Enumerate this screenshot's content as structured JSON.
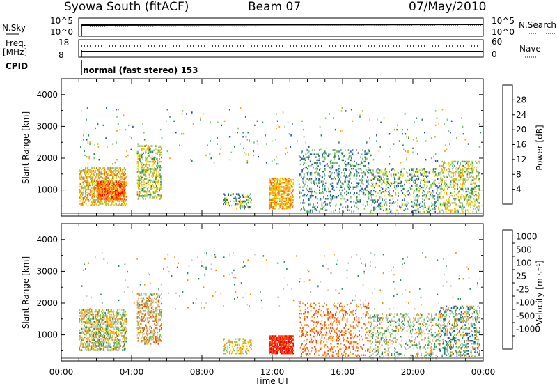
{
  "header": {
    "title": "Syowa South (fitACF)",
    "beam": "Beam 07",
    "date": "07/May/2010"
  },
  "top_panel_labels": {
    "nsky": "N.Sky",
    "nsky_hi": "10^5",
    "nsky_lo": "10^0",
    "nsearch": "N.Search",
    "nsearch_hi": "10^5",
    "nsearch_lo": "10^0",
    "freq_line1": "Freq.",
    "freq_line2": "[MHz]",
    "freq_hi": "18",
    "freq_lo": "8",
    "nave": "Nave",
    "nave_hi": "60",
    "nave_lo": "0",
    "cpid": "CPID",
    "cpid_value": "normal (fast stereo) 153"
  },
  "colors": {
    "power": [
      "#0000ff",
      "#1f4fbf",
      "#2e8b57",
      "#7cc36b",
      "#e6d800",
      "#ffa500",
      "#ff6600",
      "#ff0000"
    ],
    "velocity": [
      "#ff0000",
      "#ff4500",
      "#ff8c00",
      "#ffc200",
      "#c8c8c8",
      "#6dc45c",
      "#2e8b57",
      "#1a4fbf",
      "#0000ff"
    ],
    "ground_scatter": "#808080"
  },
  "chart_data": [
    {
      "type": "heatmap",
      "name": "power",
      "xlabel": "",
      "ylabel": "Slant Range [km]",
      "xlim": [
        0,
        24
      ],
      "ylim": [
        180,
        4500
      ],
      "yticks": [
        1000,
        2000,
        3000,
        4000
      ],
      "colorbar": {
        "label": "Power [dB]",
        "ticks": [
          "4",
          "8",
          "12",
          "16",
          "20",
          "24",
          "28"
        ],
        "range": [
          0,
          30
        ]
      },
      "scatter_regions": [
        {
          "t0": 1.0,
          "t1": 3.7,
          "r0": 500,
          "r1": 1700,
          "density": 0.35,
          "values": [
            12,
            16,
            20,
            24
          ]
        },
        {
          "t0": 2.0,
          "t1": 3.6,
          "r0": 700,
          "r1": 1300,
          "density": 0.5,
          "values": [
            20,
            24,
            28
          ]
        },
        {
          "t0": 4.3,
          "t1": 5.7,
          "r0": 700,
          "r1": 2400,
          "density": 0.25,
          "values": [
            8,
            12,
            16,
            20
          ]
        },
        {
          "t0": 9.2,
          "t1": 10.8,
          "r0": 400,
          "r1": 900,
          "density": 0.2,
          "values": [
            4,
            8,
            16
          ]
        },
        {
          "t0": 11.8,
          "t1": 13.2,
          "r0": 400,
          "r1": 1400,
          "density": 0.4,
          "values": [
            16,
            20,
            24
          ]
        },
        {
          "t0": 13.5,
          "t1": 17.5,
          "r0": 300,
          "r1": 2300,
          "density": 0.12,
          "values": [
            4,
            8,
            12
          ]
        },
        {
          "t0": 17.5,
          "t1": 21.5,
          "r0": 250,
          "r1": 1700,
          "density": 0.14,
          "values": [
            4,
            8,
            12,
            16
          ]
        },
        {
          "t0": 21.5,
          "t1": 23.8,
          "r0": 300,
          "r1": 1900,
          "density": 0.2,
          "values": [
            8,
            12,
            16,
            20
          ]
        },
        {
          "t0": 1.0,
          "t1": 23.9,
          "r0": 1800,
          "r1": 3600,
          "density": 0.01,
          "values": [
            4,
            8,
            12,
            20
          ]
        }
      ]
    },
    {
      "type": "heatmap",
      "name": "velocity",
      "xlabel": "Time UT",
      "ylabel": "Slant Range [km]",
      "xlim": [
        0,
        24
      ],
      "ylim": [
        180,
        4500
      ],
      "xticks": [
        "00:00",
        "04:00",
        "08:00",
        "12:00",
        "16:00",
        "20:00",
        "00:00"
      ],
      "yticks": [
        1000,
        2000,
        3000,
        4000
      ],
      "colorbar": {
        "label": "Velocity [m s⁻¹]",
        "ticks": [
          "1000",
          "500",
          "100",
          "25",
          "-25",
          "-100",
          "-500",
          "-1000"
        ]
      },
      "scatter_regions": [
        {
          "t0": 1.0,
          "t1": 3.7,
          "r0": 500,
          "r1": 1800,
          "density": 0.35,
          "values": [
            -100,
            -25,
            25,
            100,
            500
          ]
        },
        {
          "t0": 4.3,
          "t1": 5.7,
          "r0": 700,
          "r1": 2300,
          "density": 0.25,
          "values": [
            -500,
            -100,
            25,
            100
          ]
        },
        {
          "t0": 9.2,
          "t1": 10.8,
          "r0": 400,
          "r1": 900,
          "density": 0.2,
          "values": [
            -100,
            -25,
            100
          ]
        },
        {
          "t0": 11.8,
          "t1": 13.2,
          "r0": 400,
          "r1": 1000,
          "density": 0.6,
          "values": [
            -500,
            -1000
          ]
        },
        {
          "t0": 13.5,
          "t1": 17.5,
          "r0": 300,
          "r1": 2000,
          "density": 0.12,
          "values": [
            -500,
            -100
          ]
        },
        {
          "t0": 17.5,
          "t1": 21.5,
          "r0": 250,
          "r1": 1700,
          "density": 0.14,
          "values": [
            -100,
            25,
            100,
            500
          ]
        },
        {
          "t0": 21.5,
          "t1": 23.8,
          "r0": 300,
          "r1": 1900,
          "density": 0.2,
          "values": [
            100,
            500,
            1000,
            -100
          ]
        },
        {
          "t0": 1.0,
          "t1": 23.9,
          "r0": 1800,
          "r1": 3600,
          "density": 0.01,
          "values": [
            -100,
            25,
            500
          ]
        }
      ]
    }
  ]
}
